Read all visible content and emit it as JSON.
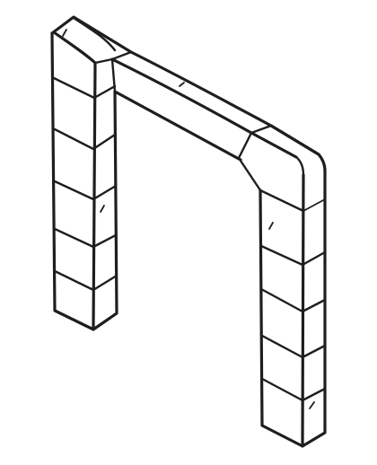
{
  "figure": {
    "subject": "stone-archway-gateway",
    "style": "line-drawing",
    "colors": {
      "ink": "#1e1e1e",
      "paper": "#ffffff"
    },
    "parts": {
      "left_pillar_blocks": 6,
      "right_pillar_blocks": 5,
      "lintel_segments": 3
    }
  }
}
